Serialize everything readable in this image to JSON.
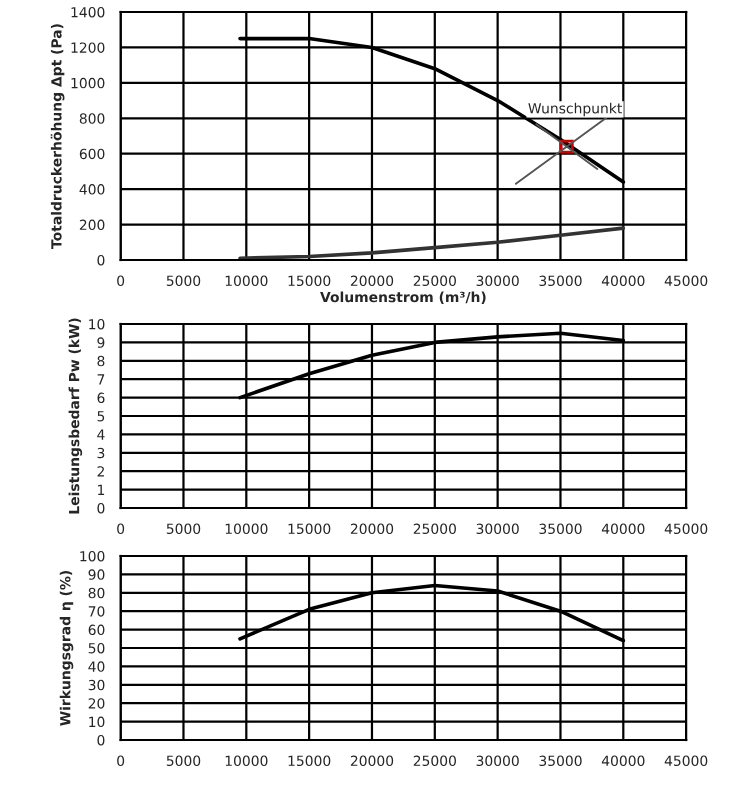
{
  "chart_data": [
    {
      "type": "line",
      "xlabel": "Volumenstrom (m³/h)",
      "ylabel": "Totaldruckerhöhung Δpt (Pa)",
      "xlim": [
        0,
        45000
      ],
      "xticks": [
        0,
        5000,
        10000,
        15000,
        20000,
        25000,
        30000,
        35000,
        40000,
        45000
      ],
      "ylim": [
        0,
        1400
      ],
      "yticks": [
        0,
        200,
        400,
        600,
        800,
        1000,
        1200,
        1400
      ],
      "grid": true,
      "marker": "none",
      "line_style": "solid",
      "series": [
        {
          "color": "#000000",
          "x": [
            9500,
            15000,
            20000,
            25000,
            30000,
            35000,
            40000
          ],
          "values": [
            1250,
            1250,
            1200,
            1080,
            900,
            680,
            440
          ]
        },
        {
          "color": "#333333",
          "x": [
            9500,
            15000,
            20000,
            25000,
            30000,
            35000,
            40000
          ],
          "values": [
            10,
            20,
            40,
            70,
            100,
            140,
            180
          ]
        }
      ],
      "annotations": [
        {
          "text": "Wunschpunkt",
          "x": 35500,
          "y": 640
        }
      ]
    },
    {
      "type": "line",
      "ylabel": "Leistungsbedarf Pw (kW)",
      "xlim": [
        0,
        45000
      ],
      "xticks": [
        0,
        5000,
        10000,
        15000,
        20000,
        25000,
        30000,
        35000,
        40000,
        45000
      ],
      "ylim": [
        0,
        10
      ],
      "yticks": [
        0,
        1,
        2,
        3,
        4,
        5,
        6,
        7,
        8,
        9,
        10
      ],
      "grid": true,
      "marker": "none",
      "line_style": "solid",
      "series": [
        {
          "color": "#000000",
          "x": [
            9500,
            15000,
            20000,
            25000,
            30000,
            35000,
            40000
          ],
          "values": [
            6.0,
            7.3,
            8.3,
            9.0,
            9.3,
            9.5,
            9.1
          ]
        }
      ]
    },
    {
      "type": "line",
      "ylabel": "Wirkungsgrad η (%)",
      "xlim": [
        0,
        45000
      ],
      "xticks": [
        0,
        5000,
        10000,
        15000,
        20000,
        25000,
        30000,
        35000,
        40000,
        45000
      ],
      "ylim": [
        0,
        100
      ],
      "yticks": [
        0,
        10,
        20,
        30,
        40,
        50,
        60,
        70,
        80,
        90,
        100
      ],
      "grid": true,
      "marker": "none",
      "line_style": "solid",
      "series": [
        {
          "color": "#000000",
          "x": [
            9500,
            15000,
            20000,
            25000,
            30000,
            35000,
            40000
          ],
          "values": [
            55,
            71,
            80,
            84,
            81,
            70,
            54
          ]
        }
      ]
    }
  ]
}
